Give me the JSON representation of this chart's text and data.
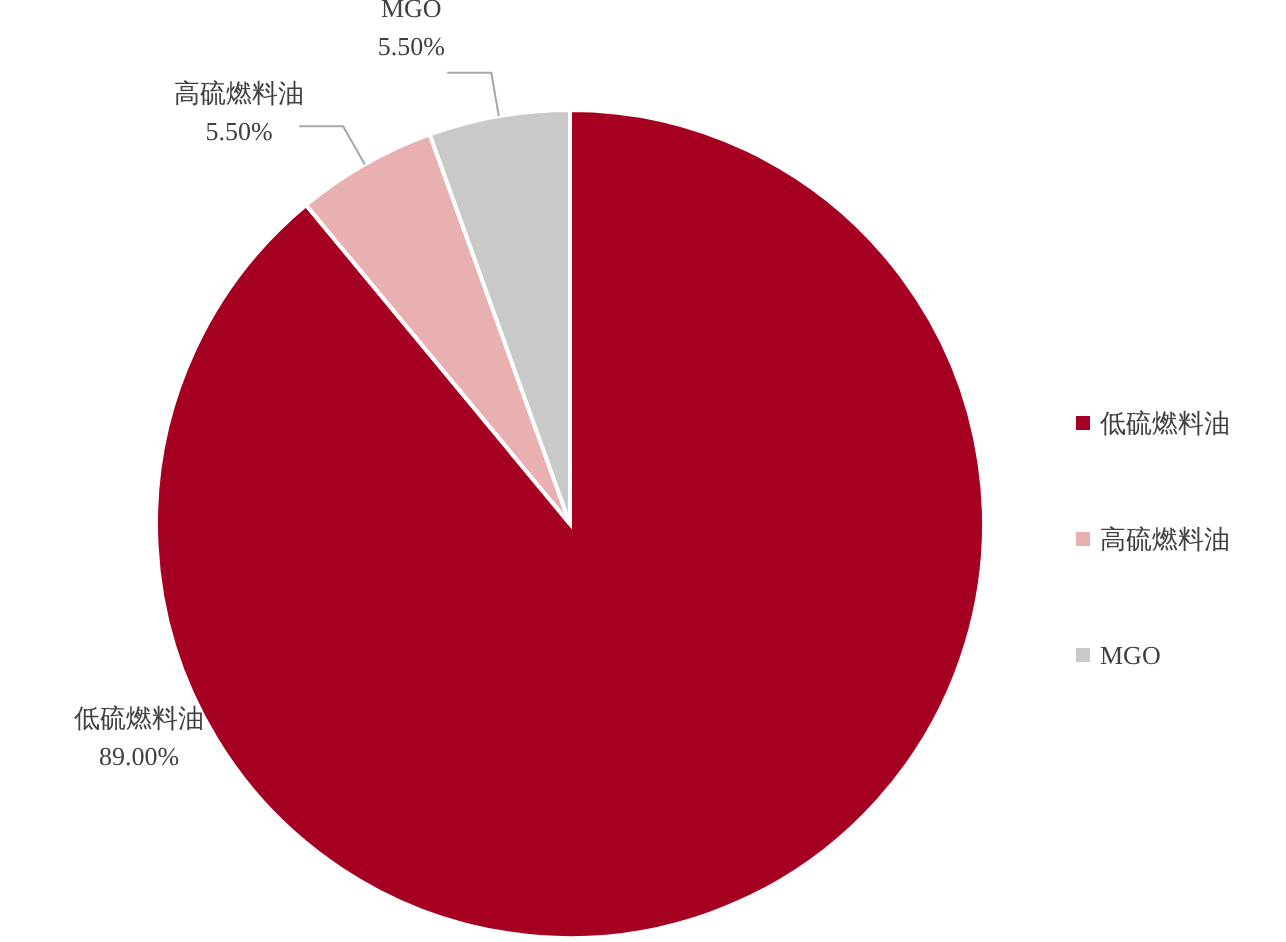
{
  "chart_data": {
    "type": "pie",
    "categories": [
      "低硫燃料油",
      "高硫燃料油",
      "MGO"
    ],
    "values": [
      89,
      5.5,
      5.5
    ],
    "colors": [
      "#a50021",
      "#e8b0b0",
      "#c9c9c9"
    ],
    "value_labels": [
      "89.00%",
      "5.50%",
      "5.50%"
    ],
    "legend": "right"
  }
}
